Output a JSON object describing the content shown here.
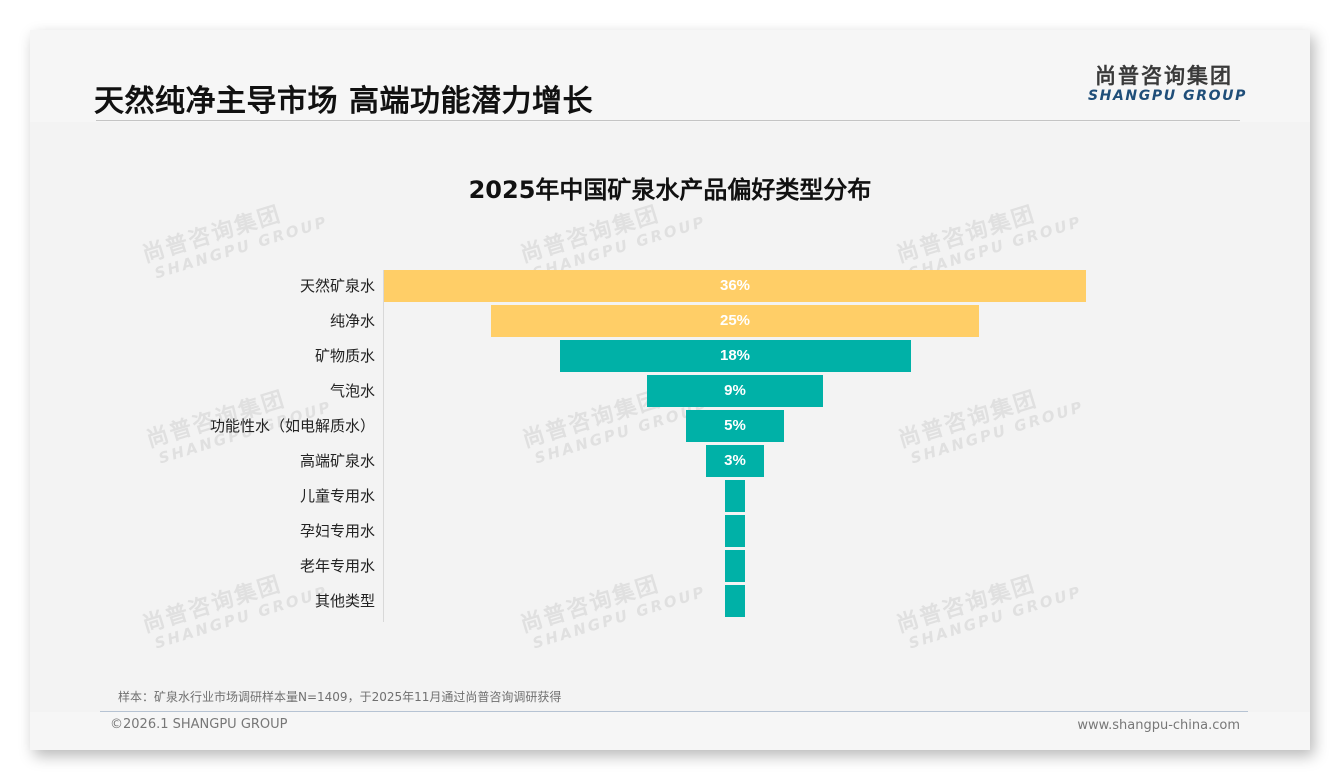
{
  "header": {
    "title": "天然纯净主导市场 高端功能潜力增长",
    "logo_cn": "尚普咨询集团",
    "logo_en": "SHANGPU GROUP"
  },
  "watermark": {
    "cn": "尚普咨询集团",
    "en": "SHANGPU GROUP"
  },
  "colors": {
    "highlight": "#FFCE67",
    "primary": "#00B1A7",
    "text": "#111111",
    "logo_en": "#1F4E79"
  },
  "chart_data": {
    "type": "bar",
    "subtype": "funnel (horizontal, centered)",
    "title": "2025年中国矿泉水产品偏好类型分布",
    "xlabel": "",
    "ylabel": "",
    "unit": "%",
    "grid": false,
    "legend": "none",
    "categories": [
      "天然矿泉水",
      "纯净水",
      "矿物质水",
      "气泡水",
      "功能性水（如电解质水）",
      "高端矿泉水",
      "儿童专用水",
      "孕妇专用水",
      "老年专用水",
      "其他类型"
    ],
    "values": [
      36,
      25,
      18,
      9,
      5,
      3,
      1,
      1,
      1,
      1
    ],
    "value_labels": [
      "36%",
      "25%",
      "18%",
      "9%",
      "5%",
      "3%",
      "",
      "",
      "",
      ""
    ],
    "bar_colors": [
      "#FFCE67",
      "#FFCE67",
      "#00B1A7",
      "#00B1A7",
      "#00B1A7",
      "#00B1A7",
      "#00B1A7",
      "#00B1A7",
      "#00B1A7",
      "#00B1A7"
    ]
  },
  "footer": {
    "sample_note": "样本：矿泉水行业市场调研样本量N=1409，于2025年11月通过尚普咨询调研获得",
    "copyright": "©2026.1 SHANGPU GROUP",
    "website": "www.shangpu-china.com"
  }
}
